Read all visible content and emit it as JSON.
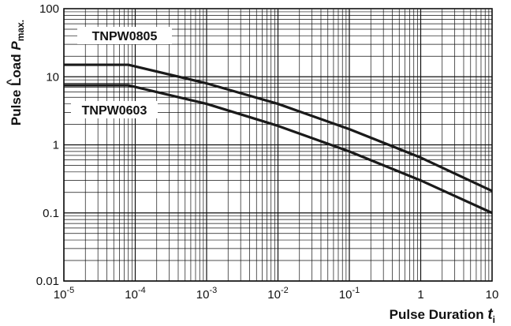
{
  "chart_data": {
    "type": "line",
    "title": "",
    "xlabel": {
      "text": "Pulse Duration ",
      "symbol": "t",
      "subscript": "i"
    },
    "ylabel": {
      "text": "Pulse Load ",
      "symbol": "P",
      "subscript": "max."
    },
    "x_scale": "log",
    "y_scale": "log",
    "xlim": [
      1e-05,
      10
    ],
    "ylim": [
      0.01,
      100
    ],
    "grid": true,
    "x_ticks": [
      {
        "base": "10",
        "exp": "-5",
        "value": 1e-05
      },
      {
        "base": "10",
        "exp": "-4",
        "value": 0.0001
      },
      {
        "base": "10",
        "exp": "-3",
        "value": 0.001
      },
      {
        "base": "10",
        "exp": "-2",
        "value": 0.01
      },
      {
        "base": "10",
        "exp": "-1",
        "value": 0.1
      },
      {
        "base": "1",
        "exp": "",
        "value": 1
      },
      {
        "base": "10",
        "exp": "",
        "value": 10
      }
    ],
    "y_ticks": [
      {
        "label": "100",
        "value": 100
      },
      {
        "label": "10",
        "value": 10
      },
      {
        "label": "1",
        "value": 1
      },
      {
        "label": "0.1",
        "value": 0.1
      },
      {
        "label": "0.01",
        "value": 0.01
      }
    ],
    "series": [
      {
        "name": "TNPW0805",
        "x": [
          1e-05,
          8e-05,
          0.001,
          0.01,
          0.1,
          1,
          10
        ],
        "y": [
          15,
          15,
          8,
          4,
          1.7,
          0.65,
          0.21
        ]
      },
      {
        "name": "TNPW0603",
        "x": [
          1e-05,
          8e-05,
          0.001,
          0.01,
          0.1,
          1,
          10
        ],
        "y": [
          7.5,
          7.5,
          4,
          1.9,
          0.8,
          0.3,
          0.1
        ]
      }
    ],
    "annotations": [
      {
        "series": "TNPW0805",
        "text": "TNPW0805"
      },
      {
        "series": "TNPW0603",
        "text": "TNPW0603"
      }
    ]
  }
}
